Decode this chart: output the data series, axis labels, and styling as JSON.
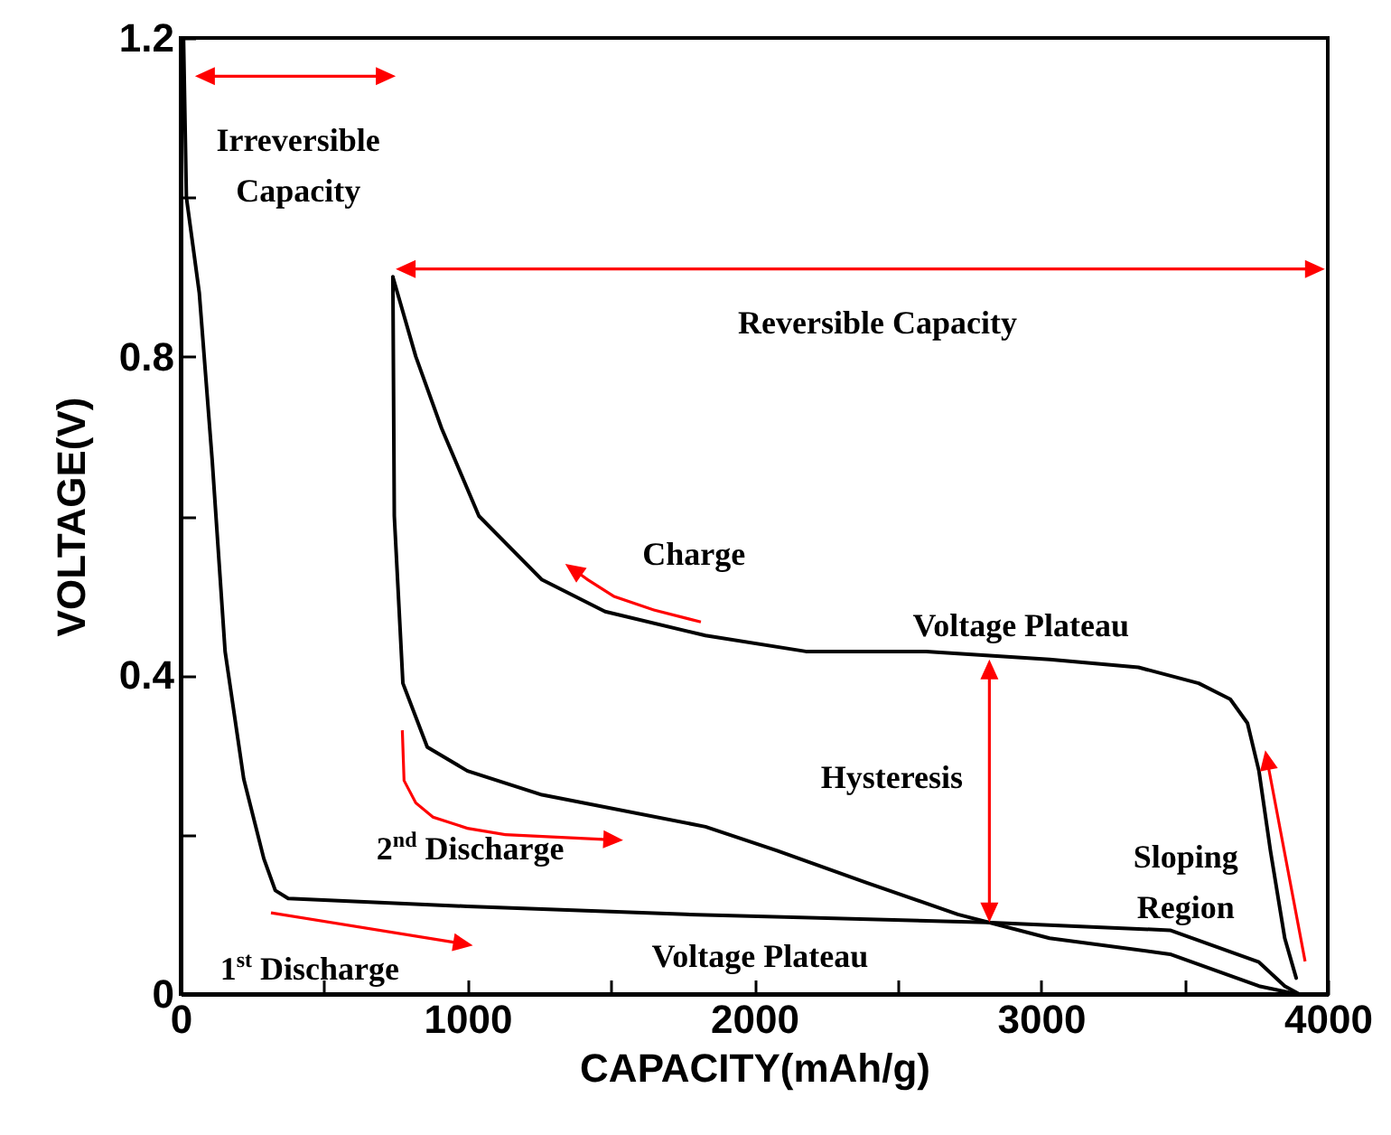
{
  "chart_data": {
    "type": "line",
    "xlabel": "CAPACITY(mAh/g)",
    "ylabel": "VOLTAGE(V)",
    "xlim": [
      0,
      4000
    ],
    "xticks": [
      0,
      {
        "value": 500,
        "label": null
      },
      1000,
      {
        "value": 1500,
        "label": null
      },
      2000,
      {
        "value": 2500,
        "label": null
      },
      3000,
      {
        "value": 3500,
        "label": null
      },
      4000
    ],
    "ylim": [
      0,
      1.2
    ],
    "yticks": [
      0,
      {
        "value": 0.2,
        "label": null
      },
      0.4,
      {
        "value": 0.6,
        "label": null
      },
      0.8,
      {
        "value": 1.0,
        "label": null
      },
      1.2
    ],
    "grid": false,
    "marker": "none",
    "line_style": "solid",
    "series": [
      {
        "color": "#000000",
        "x": [
          10,
          20,
          65,
          110,
          155,
          220,
          290,
          330,
          375,
          1000,
          1760,
          2810,
          3450,
          3760,
          3850,
          3900
        ],
        "values": [
          1.2,
          1.0,
          0.88,
          0.67,
          0.43,
          0.27,
          0.17,
          0.13,
          0.12,
          0.11,
          0.1,
          0.09,
          0.08,
          0.04,
          0.01,
          0
        ]
      },
      {
        "color": "#000000",
        "x": [
          3890,
          3850,
          3800,
          3760,
          3720,
          3660,
          3550,
          3340,
          3030,
          2600,
          2180,
          1830,
          1480,
          1260,
          1040,
          910,
          820,
          740
        ],
        "values": [
          0.02,
          0.07,
          0.18,
          0.28,
          0.34,
          0.37,
          0.39,
          0.41,
          0.42,
          0.43,
          0.43,
          0.45,
          0.48,
          0.52,
          0.6,
          0.71,
          0.8,
          0.9
        ]
      },
      {
        "color": "#000000",
        "x": [
          740,
          745,
          775,
          860,
          1000,
          1260,
          1830,
          2080,
          2390,
          2710,
          3030,
          3450,
          3760,
          3890
        ],
        "values": [
          0.9,
          0.6,
          0.39,
          0.31,
          0.28,
          0.25,
          0.21,
          0.18,
          0.14,
          0.1,
          0.07,
          0.05,
          0.01,
          0
        ]
      }
    ],
    "annotations": [
      "Irreversible\nCapacity",
      "Reversible Capacity",
      "Charge",
      "Voltage Plateau",
      "Hysteresis",
      "2$^{nd}$ Discharge",
      "Sloping\nRegion",
      "Voltage Plateau",
      "1$^{st}$ Discharge"
    ]
  }
}
